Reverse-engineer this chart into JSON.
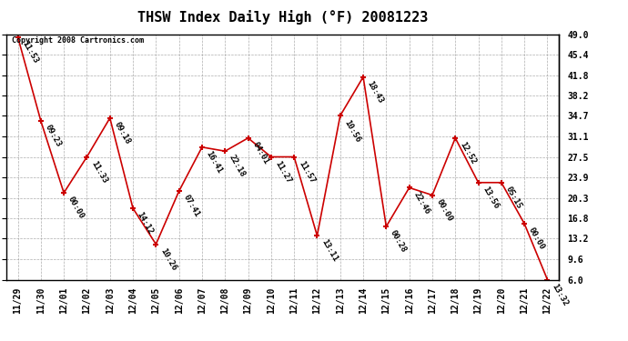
{
  "title": "THSW Index Daily High (°F) 20081223",
  "copyright": "Copyright 2008 Cartronics.com",
  "categories": [
    "11/29",
    "11/30",
    "12/01",
    "12/02",
    "12/03",
    "12/04",
    "12/05",
    "12/06",
    "12/07",
    "12/08",
    "12/09",
    "12/10",
    "12/11",
    "12/12",
    "12/13",
    "12/14",
    "12/15",
    "12/16",
    "12/17",
    "12/18",
    "12/19",
    "12/20",
    "12/21",
    "12/22"
  ],
  "values": [
    48.5,
    33.8,
    21.2,
    27.5,
    34.3,
    18.5,
    12.2,
    21.5,
    29.2,
    28.5,
    30.8,
    27.5,
    27.5,
    13.7,
    34.7,
    41.5,
    15.3,
    22.1,
    20.8,
    30.8,
    23.0,
    23.0,
    15.8,
    6.0
  ],
  "times": [
    "11:53",
    "09:23",
    "00:00",
    "11:33",
    "09:18",
    "14:12",
    "10:26",
    "07:41",
    "16:41",
    "22:18",
    "04:01",
    "11:27",
    "11:57",
    "13:11",
    "10:56",
    "18:43",
    "00:28",
    "22:46",
    "00:00",
    "12:52",
    "13:56",
    "05:15",
    "00:00",
    "13:32"
  ],
  "yticks": [
    6.0,
    9.6,
    13.2,
    16.8,
    20.3,
    23.9,
    27.5,
    31.1,
    34.7,
    38.2,
    41.8,
    45.4,
    49.0
  ],
  "line_color": "#cc0000",
  "marker_color": "#cc0000",
  "bg_color": "#ffffff",
  "grid_color": "#999999",
  "title_fontsize": 11,
  "tick_fontsize": 7,
  "annot_fontsize": 6.5
}
